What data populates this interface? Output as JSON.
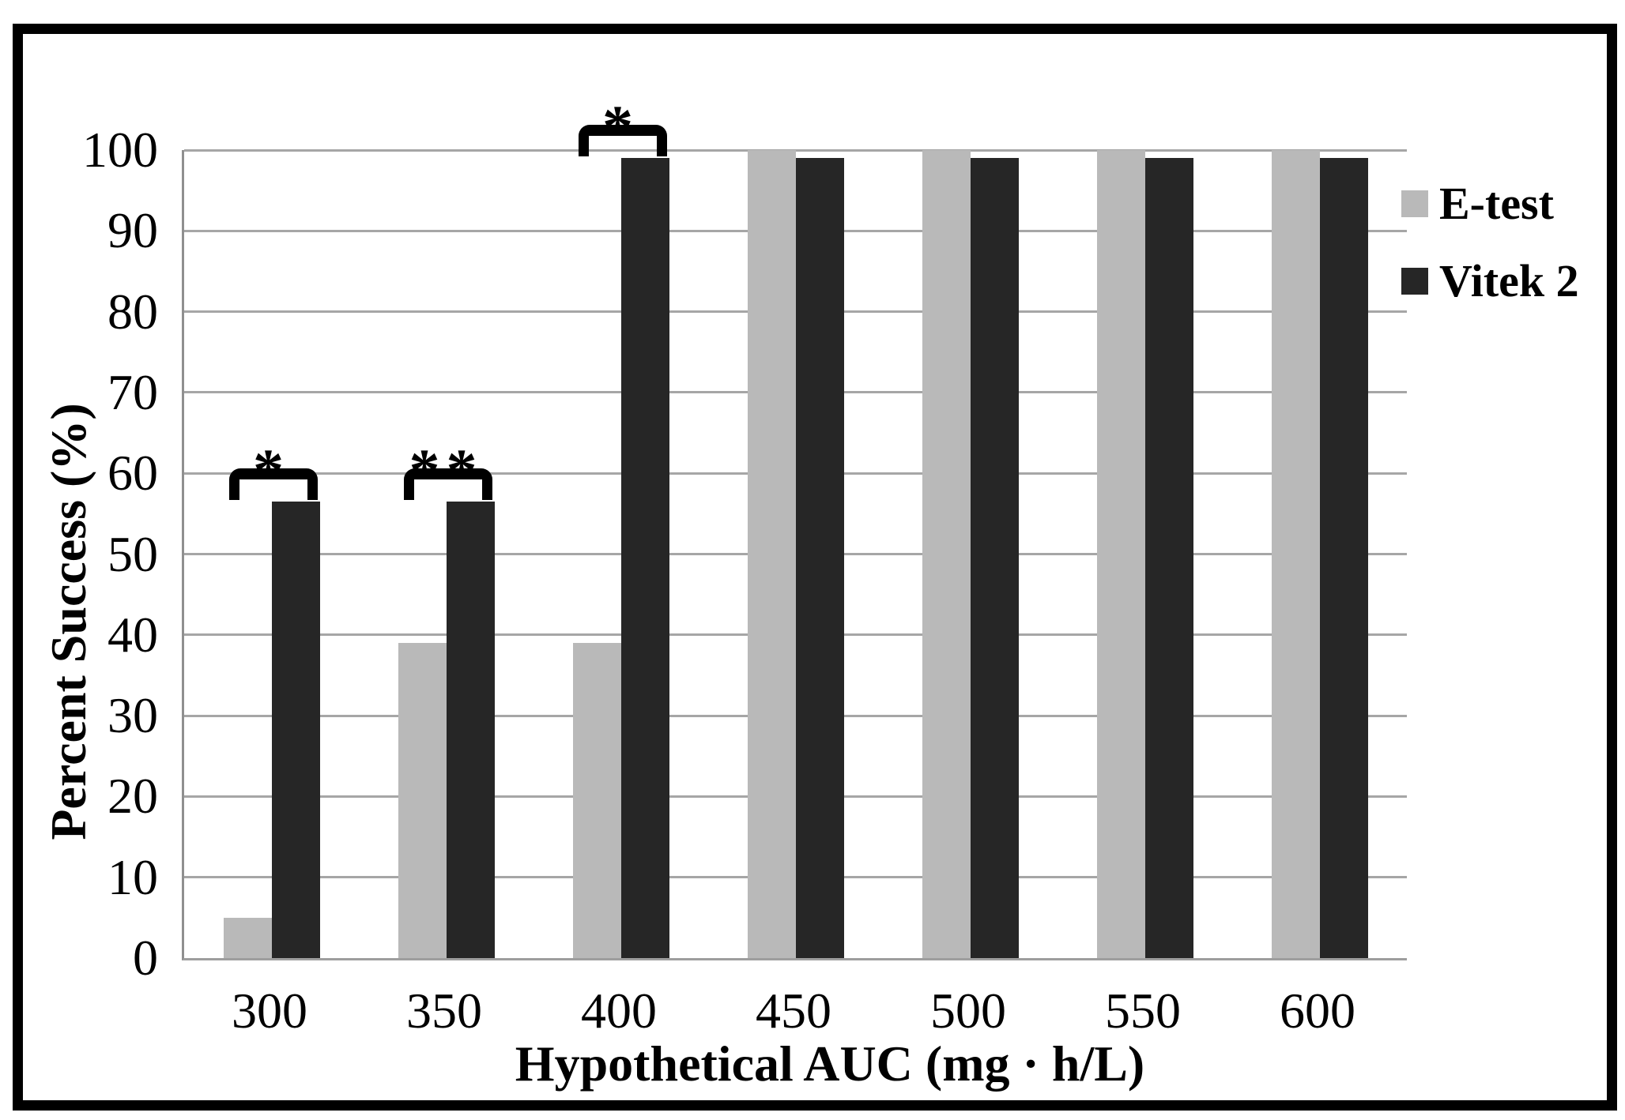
{
  "chart_data": {
    "type": "bar",
    "title": "",
    "xlabel": "Hypothetical AUC (mg · h/L)",
    "ylabel": "Percent Success (%)",
    "categories": [
      "300",
      "350",
      "400",
      "450",
      "500",
      "550",
      "600"
    ],
    "series": [
      {
        "name": "E-test",
        "color": "#b9b9b9",
        "values": [
          5,
          39,
          39,
          100,
          100,
          100,
          100
        ]
      },
      {
        "name": "Vitek 2",
        "color": "#262626",
        "values": [
          56.5,
          56.5,
          99,
          99,
          99,
          99,
          99
        ]
      }
    ],
    "ylim": [
      0,
      100
    ],
    "yticks": [
      0,
      10,
      20,
      30,
      40,
      50,
      60,
      70,
      80,
      90,
      100
    ],
    "grid": "horizontal",
    "legend_position": "right",
    "significance_brackets": [
      {
        "category": "300",
        "label": "*"
      },
      {
        "category": "350",
        "label": "**"
      },
      {
        "category": "400",
        "label": "*"
      }
    ],
    "colors": {
      "grid": "#a6a6a6",
      "axis": "#8f8f8f",
      "frame": "#000000",
      "background": "#ffffff",
      "annotation": "#000000"
    }
  }
}
